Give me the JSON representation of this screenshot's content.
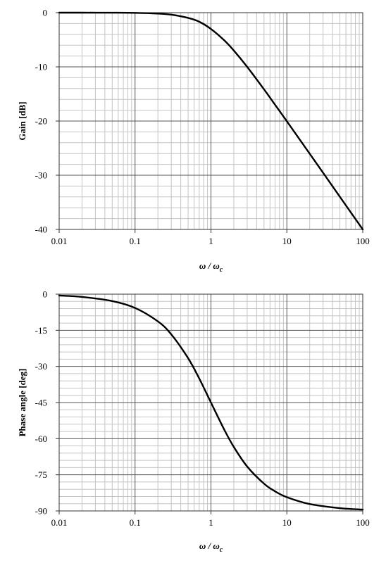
{
  "chart_data": [
    {
      "type": "line",
      "x_scale": "log",
      "xlim": [
        0.01,
        100
      ],
      "ylim": [
        -40,
        0
      ],
      "x_ticks": [
        0.01,
        0.1,
        1,
        10,
        100
      ],
      "x_tick_labels": [
        "0.01",
        "0.1",
        "1",
        "10",
        "100"
      ],
      "y_ticks": [
        0,
        -10,
        -20,
        -30,
        -40
      ],
      "y_tick_labels": [
        "0",
        "-10",
        "-20",
        "-30",
        "-40"
      ],
      "xlabel": "ω / ωc",
      "xlabel_main": "ω / ω",
      "xlabel_sub": "c",
      "ylabel": "Gain [dB]",
      "grid": true,
      "series": [
        {
          "x": [
            0.01,
            0.02,
            0.05,
            0.1,
            0.2,
            0.3,
            0.5,
            0.7,
            1,
            1.5,
            2,
            3,
            5,
            7,
            10,
            20,
            50,
            100
          ],
          "y": [
            0,
            0,
            -0.01,
            -0.04,
            -0.17,
            -0.37,
            -0.97,
            -1.67,
            -3.01,
            -5.12,
            -6.99,
            -10.0,
            -14.15,
            -17.0,
            -20.04,
            -26.03,
            -33.98,
            -40.0
          ]
        }
      ]
    },
    {
      "type": "line",
      "x_scale": "log",
      "xlim": [
        0.01,
        100
      ],
      "ylim": [
        -90,
        0
      ],
      "x_ticks": [
        0.01,
        0.1,
        1,
        10,
        100
      ],
      "x_tick_labels": [
        "0.01",
        "0.1",
        "1",
        "10",
        "100"
      ],
      "y_ticks": [
        0,
        -15,
        -30,
        -45,
        -60,
        -75,
        -90
      ],
      "y_tick_labels": [
        "0",
        "-15",
        "-30",
        "-45",
        "-60",
        "-75",
        "-90"
      ],
      "xlabel": "ω / ωc",
      "xlabel_main": "ω / ω",
      "xlabel_sub": "c",
      "ylabel": "Phase angle [deg]",
      "grid": true,
      "series": [
        {
          "x": [
            0.01,
            0.02,
            0.05,
            0.1,
            0.2,
            0.3,
            0.5,
            0.7,
            1,
            1.5,
            2,
            3,
            5,
            7,
            10,
            20,
            50,
            100
          ],
          "y": [
            -0.57,
            -1.15,
            -2.86,
            -5.71,
            -11.31,
            -16.7,
            -26.57,
            -34.99,
            -45.0,
            -56.31,
            -63.43,
            -71.57,
            -78.69,
            -81.87,
            -84.29,
            -87.14,
            -88.85,
            -89.43
          ]
        }
      ]
    }
  ]
}
